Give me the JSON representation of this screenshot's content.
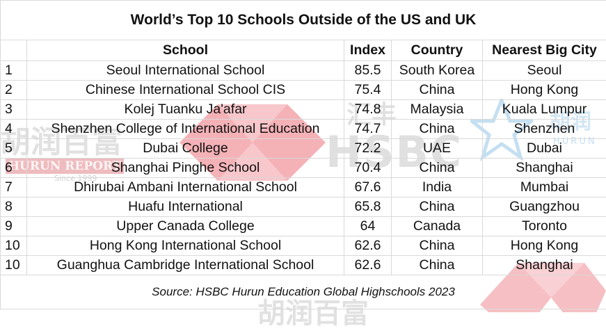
{
  "title": "World’s Top 10 Schools Outside of the US and UK",
  "columns": {
    "school": "School",
    "index": "Index",
    "country": "Country",
    "city": "Nearest Big City"
  },
  "rows": [
    {
      "rank": "1",
      "school": "Seoul International School",
      "index": "85.5",
      "country": "South Korea",
      "city": "Seoul"
    },
    {
      "rank": "2",
      "school": "Chinese International School CIS",
      "index": "75.4",
      "country": "China",
      "city": "Hong Kong"
    },
    {
      "rank": "3",
      "school": "Kolej Tuanku Ja'afar",
      "index": "74.8",
      "country": "Malaysia",
      "city": "Kuala Lumpur"
    },
    {
      "rank": "4",
      "school": "Shenzhen College of International Education",
      "index": "74.7",
      "country": "China",
      "city": "Shenzhen"
    },
    {
      "rank": "5",
      "school": "Dubai College",
      "index": "72.2",
      "country": "UAE",
      "city": "Dubai"
    },
    {
      "rank": "6",
      "school": "Shanghai Pinghe School",
      "index": "70.4",
      "country": "China",
      "city": "Shanghai"
    },
    {
      "rank": "7",
      "school": "Dhirubai Ambani International School",
      "index": "67.6",
      "country": "India",
      "city": "Mumbai"
    },
    {
      "rank": "8",
      "school": "Huafu International",
      "index": "65.8",
      "country": "China",
      "city": "Guangzhou"
    },
    {
      "rank": "9",
      "school": "Upper Canada College",
      "index": "64",
      "country": "Canada",
      "city": "Toronto"
    },
    {
      "rank": "10",
      "school": "Hong Kong International School",
      "index": "62.6",
      "country": "China",
      "city": "Hong Kong"
    },
    {
      "rank": "10",
      "school": "Guanghua Cambridge International School",
      "index": "62.6",
      "country": "China",
      "city": "Shanghai"
    }
  ],
  "source": "Source: HSBC Hurun Education Global Highschools 2023",
  "watermarks": {
    "hurun_cn": "胡润百富",
    "hurun_report": "HURUN REPORT",
    "since": "Since 1999",
    "hsbc_cn": "汇丰",
    "hsbc": "HSBC",
    "hurun_cn_short": "胡润",
    "hurun_en": "HURUN",
    "hurun_cn_bottom": "胡润百富"
  },
  "colors": {
    "hsbc_red": "#db0011",
    "grid_line": "#d9d9d9",
    "hurun_blue": "#7cb8e0"
  }
}
